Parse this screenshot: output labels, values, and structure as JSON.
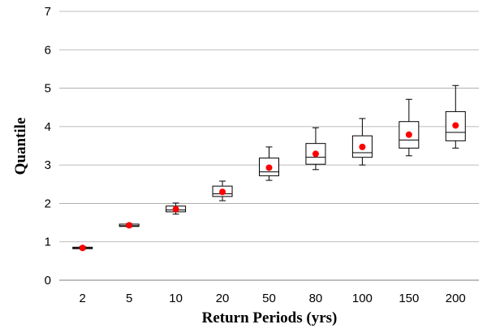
{
  "chart_data": {
    "type": "box",
    "xlabel": "Return Periods (yrs)",
    "ylabel": "Quantile",
    "ylim": [
      0,
      7
    ],
    "yticks": [
      "0",
      "1",
      "2",
      "3",
      "4",
      "5",
      "6",
      "7"
    ],
    "grid": true,
    "categories": [
      "2",
      "5",
      "10",
      "20",
      "50",
      "80",
      "100",
      "150",
      "200"
    ],
    "boxes": [
      {
        "min": 0.81,
        "q1": 0.82,
        "median": 0.84,
        "q3": 0.86,
        "max": 0.88,
        "mean": 0.84
      },
      {
        "min": 1.39,
        "q1": 1.4,
        "median": 1.42,
        "q3": 1.46,
        "max": 1.47,
        "mean": 1.43
      },
      {
        "min": 1.72,
        "q1": 1.78,
        "median": 1.83,
        "q3": 1.93,
        "max": 2.01,
        "mean": 1.85
      },
      {
        "min": 2.07,
        "q1": 2.18,
        "median": 2.25,
        "q3": 2.45,
        "max": 2.58,
        "mean": 2.3
      },
      {
        "min": 2.6,
        "q1": 2.72,
        "median": 2.82,
        "q3": 3.18,
        "max": 3.47,
        "mean": 2.93
      },
      {
        "min": 2.88,
        "q1": 3.02,
        "median": 3.2,
        "q3": 3.56,
        "max": 3.97,
        "mean": 3.29
      },
      {
        "min": 3.0,
        "q1": 3.2,
        "median": 3.32,
        "q3": 3.76,
        "max": 4.21,
        "mean": 3.47
      },
      {
        "min": 3.24,
        "q1": 3.44,
        "median": 3.65,
        "q3": 4.13,
        "max": 4.71,
        "mean": 3.79
      },
      {
        "min": 3.44,
        "q1": 3.63,
        "median": 3.85,
        "q3": 4.39,
        "max": 5.07,
        "mean": 4.03
      }
    ],
    "colors": {
      "mean_marker": "#ff0000",
      "box": "#000000",
      "grid": "#a6a6a6"
    }
  }
}
